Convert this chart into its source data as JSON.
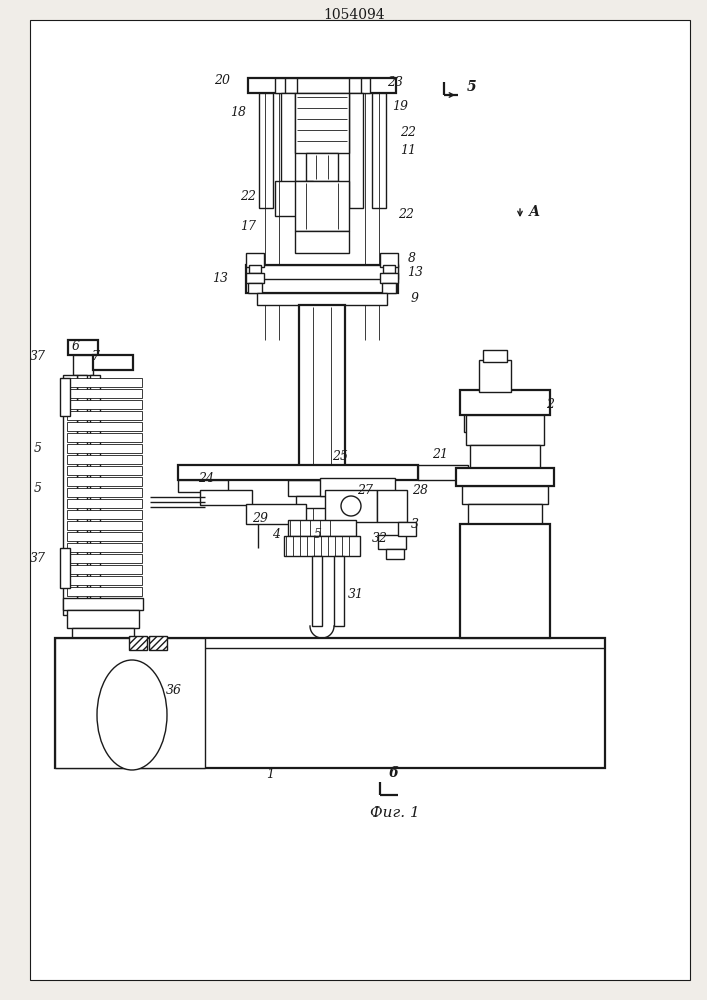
{
  "title": "1054094",
  "fig_label": "Фиг. 1",
  "background_color": "#f0ede8",
  "line_color": "#1a1a1a",
  "lw": 1.0,
  "lw_thin": 0.6,
  "lw_thick": 1.6
}
